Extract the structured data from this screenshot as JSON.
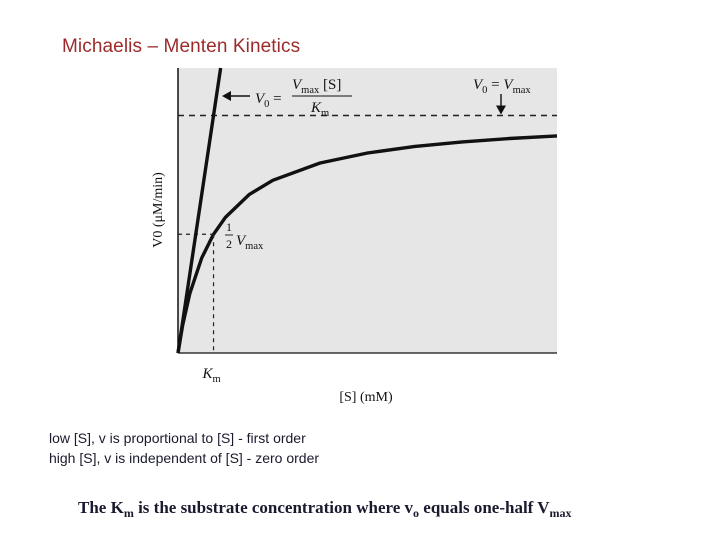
{
  "slide": {
    "title": "Michaelis – Menten Kinetics",
    "notes": [
      "low [S], v is proportional to [S] - first order",
      "high [S], v is independent of [S] - zero order"
    ],
    "statement": {
      "part1": "The K",
      "sub1": "m",
      "part2": " is the substrate concentration where v",
      "sub2": "o",
      "part3": " equals one-half V",
      "sub3": "max"
    }
  },
  "chart_data": {
    "type": "line",
    "title": "",
    "xlabel": "[S] (mM)",
    "ylabel": "V0 (μM/min)",
    "xlim": [
      0,
      8
    ],
    "ylim": [
      0,
      1.2
    ],
    "Vmax": 1.0,
    "Km": 0.75,
    "grid": false,
    "series": [
      {
        "role": "hyperbola",
        "x": [
          0,
          0.1,
          0.25,
          0.5,
          0.75,
          1.0,
          1.5,
          2,
          3,
          4,
          5,
          6,
          7,
          8
        ],
        "y": [
          0,
          0.118,
          0.25,
          0.4,
          0.5,
          0.571,
          0.667,
          0.727,
          0.8,
          0.842,
          0.87,
          0.889,
          0.903,
          0.914
        ]
      },
      {
        "role": "initial-slope",
        "x": [
          0,
          0.75
        ],
        "y": [
          0,
          1.0
        ]
      }
    ],
    "annotations": {
      "initial_rate": {
        "lhs": "V",
        "lhs_sub": "0",
        "eq": "=",
        "num": "V",
        "num_sub": "max",
        "num_tail": " [S]",
        "den": "K",
        "den_sub": "m"
      },
      "max_rate": {
        "lhs": "V",
        "lhs_sub": "0",
        "eq": " = ",
        "rhs": "V",
        "rhs_sub": "max"
      },
      "half_vmax": {
        "num": "1",
        "den": "2",
        "v": "V",
        "v_sub": "max"
      },
      "km_label": {
        "k": "K",
        "k_sub": "m"
      }
    }
  }
}
